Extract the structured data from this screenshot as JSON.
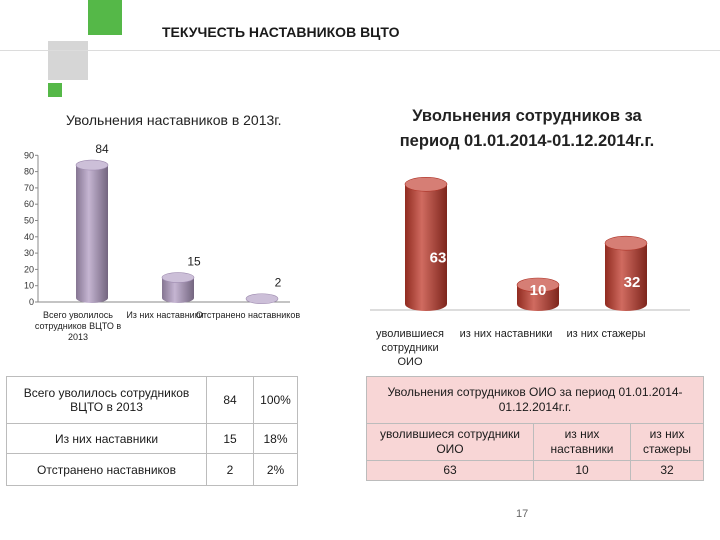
{
  "slide": {
    "title": "ТЕКУЧЕСТЬ НАСТАВНИКОВ ВЦТО",
    "page_number": "17",
    "colors": {
      "accent_green": "#55b848",
      "accent_gray": "#d6d6d6",
      "table2_fill": "#f8d6d6"
    }
  },
  "chart_data": [
    {
      "type": "bar",
      "title": "Увольнения наставников в 2013г.",
      "categories": [
        "Всего уволилось сотрудников ВЦТО в 2013",
        "Из них наставники",
        "Отстранено наставников"
      ],
      "values": [
        84,
        15,
        2
      ],
      "value_labels": [
        "84",
        "15",
        "2"
      ],
      "ylim": [
        0,
        90
      ],
      "yticks": [
        0,
        10,
        20,
        30,
        40,
        50,
        60,
        70,
        80,
        90
      ],
      "bar_style": "3d-cylinder",
      "color": "#b19cc3",
      "grid": false
    },
    {
      "type": "bar",
      "title": "Увольнения сотрудников за период 01.01.2014-01.12.2014г.г.",
      "categories": [
        "уволившиеся сотрудники ОИО",
        "из них наставники",
        "из них стажеры"
      ],
      "values": [
        63,
        10,
        32
      ],
      "value_labels": [
        "63",
        "10",
        "32"
      ],
      "bar_style": "3d-cylinder",
      "color": "#c0392b",
      "grid": false,
      "y_axis_visible": false
    }
  ],
  "table1": {
    "rows": [
      [
        "Всего уволилось сотрудников ВЦТО в 2013",
        "84",
        "100%"
      ],
      [
        "Из них наставники",
        "15",
        "18%"
      ],
      [
        "Отстранено наставников",
        "2",
        "2%"
      ]
    ]
  },
  "table2": {
    "title": "Увольнения сотрудников ОИО за период 01.01.2014-01.12.2014г.г.",
    "headers": [
      "уволившиеся сотрудники ОИО",
      "из них наставники",
      "из них стажеры"
    ],
    "values": [
      "63",
      "10",
      "32"
    ]
  }
}
